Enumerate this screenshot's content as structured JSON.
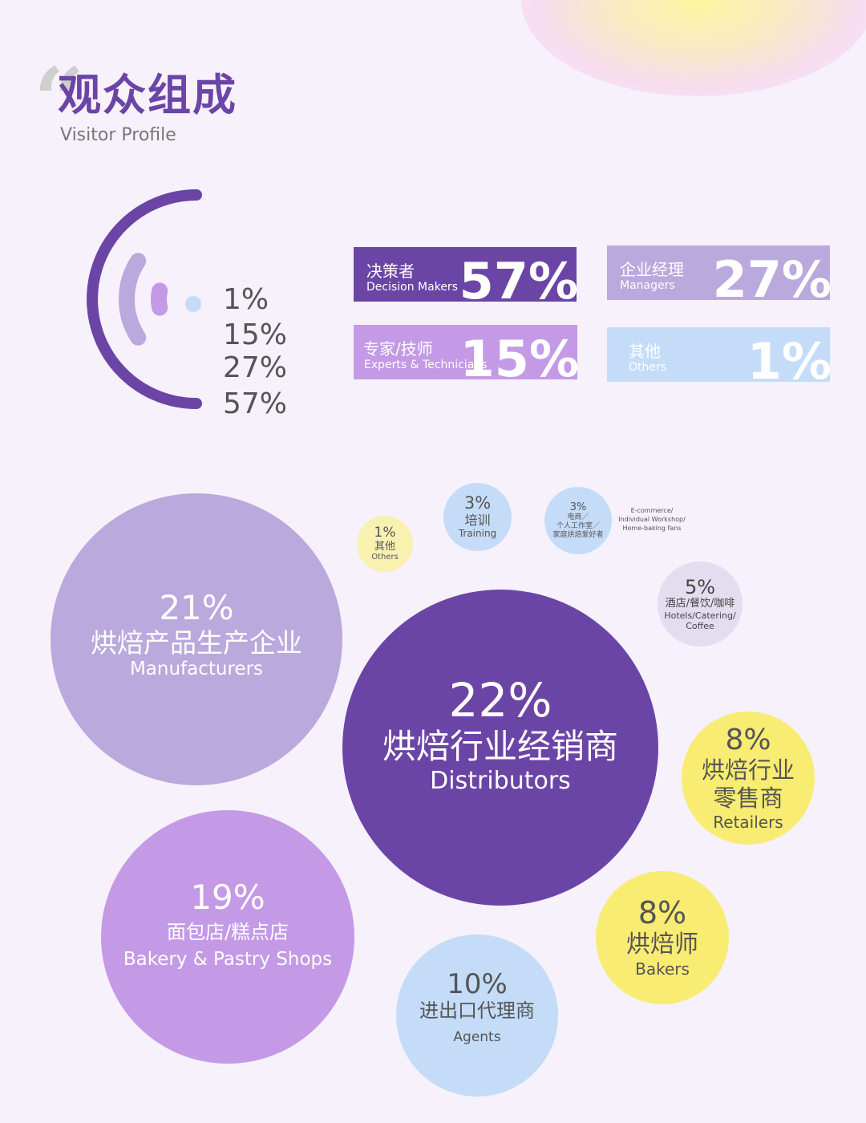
{
  "header": {
    "quote_mark": "“",
    "title": "观众组成",
    "subtitle": "Visitor Profile"
  },
  "colors": {
    "background": "#f6f1fb",
    "dark_purple": "#6b45a6",
    "mid_purple": "#b9a9dc",
    "light_purple": "#c49ae6",
    "light_blue": "#c4dcf8",
    "yellow": "#f8ec72",
    "pale_yellow": "#f8f1b0",
    "lavender_grey": "#e4dcef"
  },
  "chart_data": [
    {
      "type": "radial-bar",
      "values": [
        1,
        15,
        27,
        57
      ],
      "labels": [
        "1%",
        "15%",
        "27%",
        "57%"
      ],
      "categories": [
        {
          "name": "决策者",
          "name_en": "Decision Makers",
          "value": 57,
          "label": "57%",
          "color": "#6b45a6"
        },
        {
          "name": "企业经理",
          "name_en": "Managers",
          "value": 27,
          "label": "27%",
          "color": "#b9a9dc"
        },
        {
          "name": "专家/技师",
          "name_en": "Experts & Technicians",
          "value": 15,
          "label": "15%",
          "color": "#c49ae6"
        },
        {
          "name": "其他",
          "name_en": "Others",
          "value": 1,
          "label": "1%",
          "color": "#c4dcf8"
        }
      ]
    },
    {
      "type": "bubble",
      "items": [
        {
          "key": "distributors",
          "value": 22,
          "label": "22%",
          "cn": "烘焙行业经销商",
          "en": "Distributors",
          "color": "#6b45a6"
        },
        {
          "key": "manufacturers",
          "value": 21,
          "label": "21%",
          "cn": "烘焙产品生产企业",
          "en": "Manufacturers",
          "color": "#b9a9dc"
        },
        {
          "key": "bakery",
          "value": 19,
          "label": "19%",
          "cn": "面包店/糕点店",
          "en": "Bakery & Pastry Shops",
          "color": "#c49ae6"
        },
        {
          "key": "agents",
          "value": 10,
          "label": "10%",
          "cn": "进出口代理商",
          "en": "Agents",
          "color": "#c4dcf8"
        },
        {
          "key": "retailers",
          "value": 8,
          "label": "8%",
          "cn": "烘焙行业零售商",
          "en": "Retailers",
          "color": "#f8ec72"
        },
        {
          "key": "bakers",
          "value": 8,
          "label": "8%",
          "cn": "烘焙师",
          "en": "Bakers",
          "color": "#f8ec72"
        },
        {
          "key": "hotels",
          "value": 5,
          "label": "5%",
          "cn": "酒店/餐饮/咖啡",
          "en": "Hotels/Catering/Coffee",
          "color": "#e4dcef"
        },
        {
          "key": "training",
          "value": 3,
          "label": "3%",
          "cn": "培训",
          "en": "Training",
          "color": "#c4dcf8"
        },
        {
          "key": "ecommerce",
          "value": 3,
          "label": "3%",
          "cn": "电商/个人工作室/家庭烘焙爱好者",
          "en": "E-commerce/Individual Workshop/Home-baking fans",
          "color": "#c4dcf8"
        },
        {
          "key": "others",
          "value": 1,
          "label": "1%",
          "cn": "其他",
          "en": "Others",
          "color": "#f8f1b0"
        }
      ]
    }
  ],
  "bubble_text": {
    "distributors": {
      "pct": "22%",
      "cn": "烘焙行业经销商",
      "en": "Distributors"
    },
    "manufacturers": {
      "pct": "21%",
      "cn": "烘焙产品生产企业",
      "en": "Manufacturers"
    },
    "bakery": {
      "pct": "19%",
      "cn": "面包店/糕点店",
      "en": "Bakery & Pastry Shops"
    },
    "agents": {
      "pct": "10%",
      "cn": "进出口代理商",
      "en": "Agents"
    },
    "retailers": {
      "pct": "8%",
      "cn1": "烘焙行业",
      "cn2": "零售商",
      "en": "Retailers"
    },
    "bakers": {
      "pct": "8%",
      "cn": "烘焙师",
      "en": "Bakers"
    },
    "hotels": {
      "pct": "5%",
      "cn": "酒店/餐饮/咖啡",
      "en1": "Hotels/Catering/",
      "en2": "Coffee"
    },
    "training": {
      "pct": "3%",
      "cn": "培训",
      "en": "Training"
    },
    "ecommerce": {
      "pct": "3%",
      "cn1": "电商／",
      "cn2": "个人工作室／",
      "cn3": "家庭烘焙爱好者",
      "en1": "E-commerce/",
      "en2": "Individual Workshop/",
      "en3": "Home-baking fans"
    },
    "others": {
      "pct": "1%",
      "cn": "其他",
      "en": "Others"
    }
  }
}
